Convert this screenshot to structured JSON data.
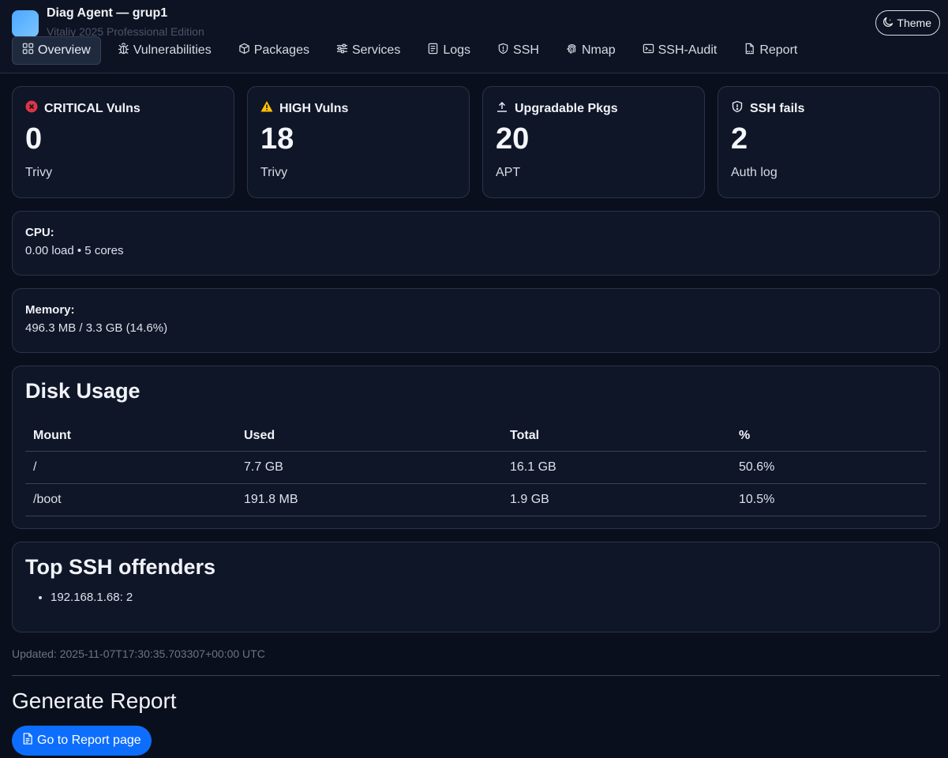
{
  "header": {
    "title": "Diag Agent — grup1",
    "subtitle": "Vitaliy 2025 Professional Edition",
    "theme_label": "Theme"
  },
  "nav": {
    "tabs": [
      {
        "label": "Overview",
        "icon": "grid-icon",
        "active": true
      },
      {
        "label": "Vulnerabilities",
        "icon": "bug-icon"
      },
      {
        "label": "Packages",
        "icon": "box-icon"
      },
      {
        "label": "Services",
        "icon": "sliders-icon"
      },
      {
        "label": "Logs",
        "icon": "file-lines-icon"
      },
      {
        "label": "SSH",
        "icon": "shield-icon"
      },
      {
        "label": "Nmap",
        "icon": "fingerprint-icon"
      },
      {
        "label": "SSH-Audit",
        "icon": "terminal-icon"
      },
      {
        "label": "Report",
        "icon": "pdf-file-icon"
      }
    ]
  },
  "stats": [
    {
      "label": "CRITICAL Vulns",
      "value": "0",
      "source": "Trivy",
      "icon": "x-circle-icon",
      "color": "#dc3545"
    },
    {
      "label": "HIGH Vulns",
      "value": "18",
      "source": "Trivy",
      "icon": "warning-triangle-icon",
      "color": "#ffc107"
    },
    {
      "label": "Upgradable Pkgs",
      "value": "20",
      "source": "APT",
      "icon": "upload-icon",
      "color": "#e6e9f0"
    },
    {
      "label": "SSH fails",
      "value": "2",
      "source": "Auth log",
      "icon": "shield-exclamation-icon",
      "color": "#e6e9f0"
    }
  ],
  "cpu": {
    "label": "CPU:",
    "value": "0.00 load • 5 cores"
  },
  "memory": {
    "label": "Memory:",
    "value": "496.3 MB / 3.3 GB (14.6%)"
  },
  "disk": {
    "title": "Disk Usage",
    "columns": [
      "Mount",
      "Used",
      "Total",
      "%"
    ],
    "rows": [
      [
        "/",
        "7.7 GB",
        "16.1 GB",
        "50.6%"
      ],
      [
        "/boot",
        "191.8 MB",
        "1.9 GB",
        "10.5%"
      ]
    ]
  },
  "offenders": {
    "title": "Top SSH offenders",
    "items": [
      "192.168.1.68: 2"
    ]
  },
  "updated": "Updated: 2025-11-07T17:30:35.703307+00:00 UTC",
  "report": {
    "title": "Generate Report",
    "button_label": "Go to Report page"
  }
}
